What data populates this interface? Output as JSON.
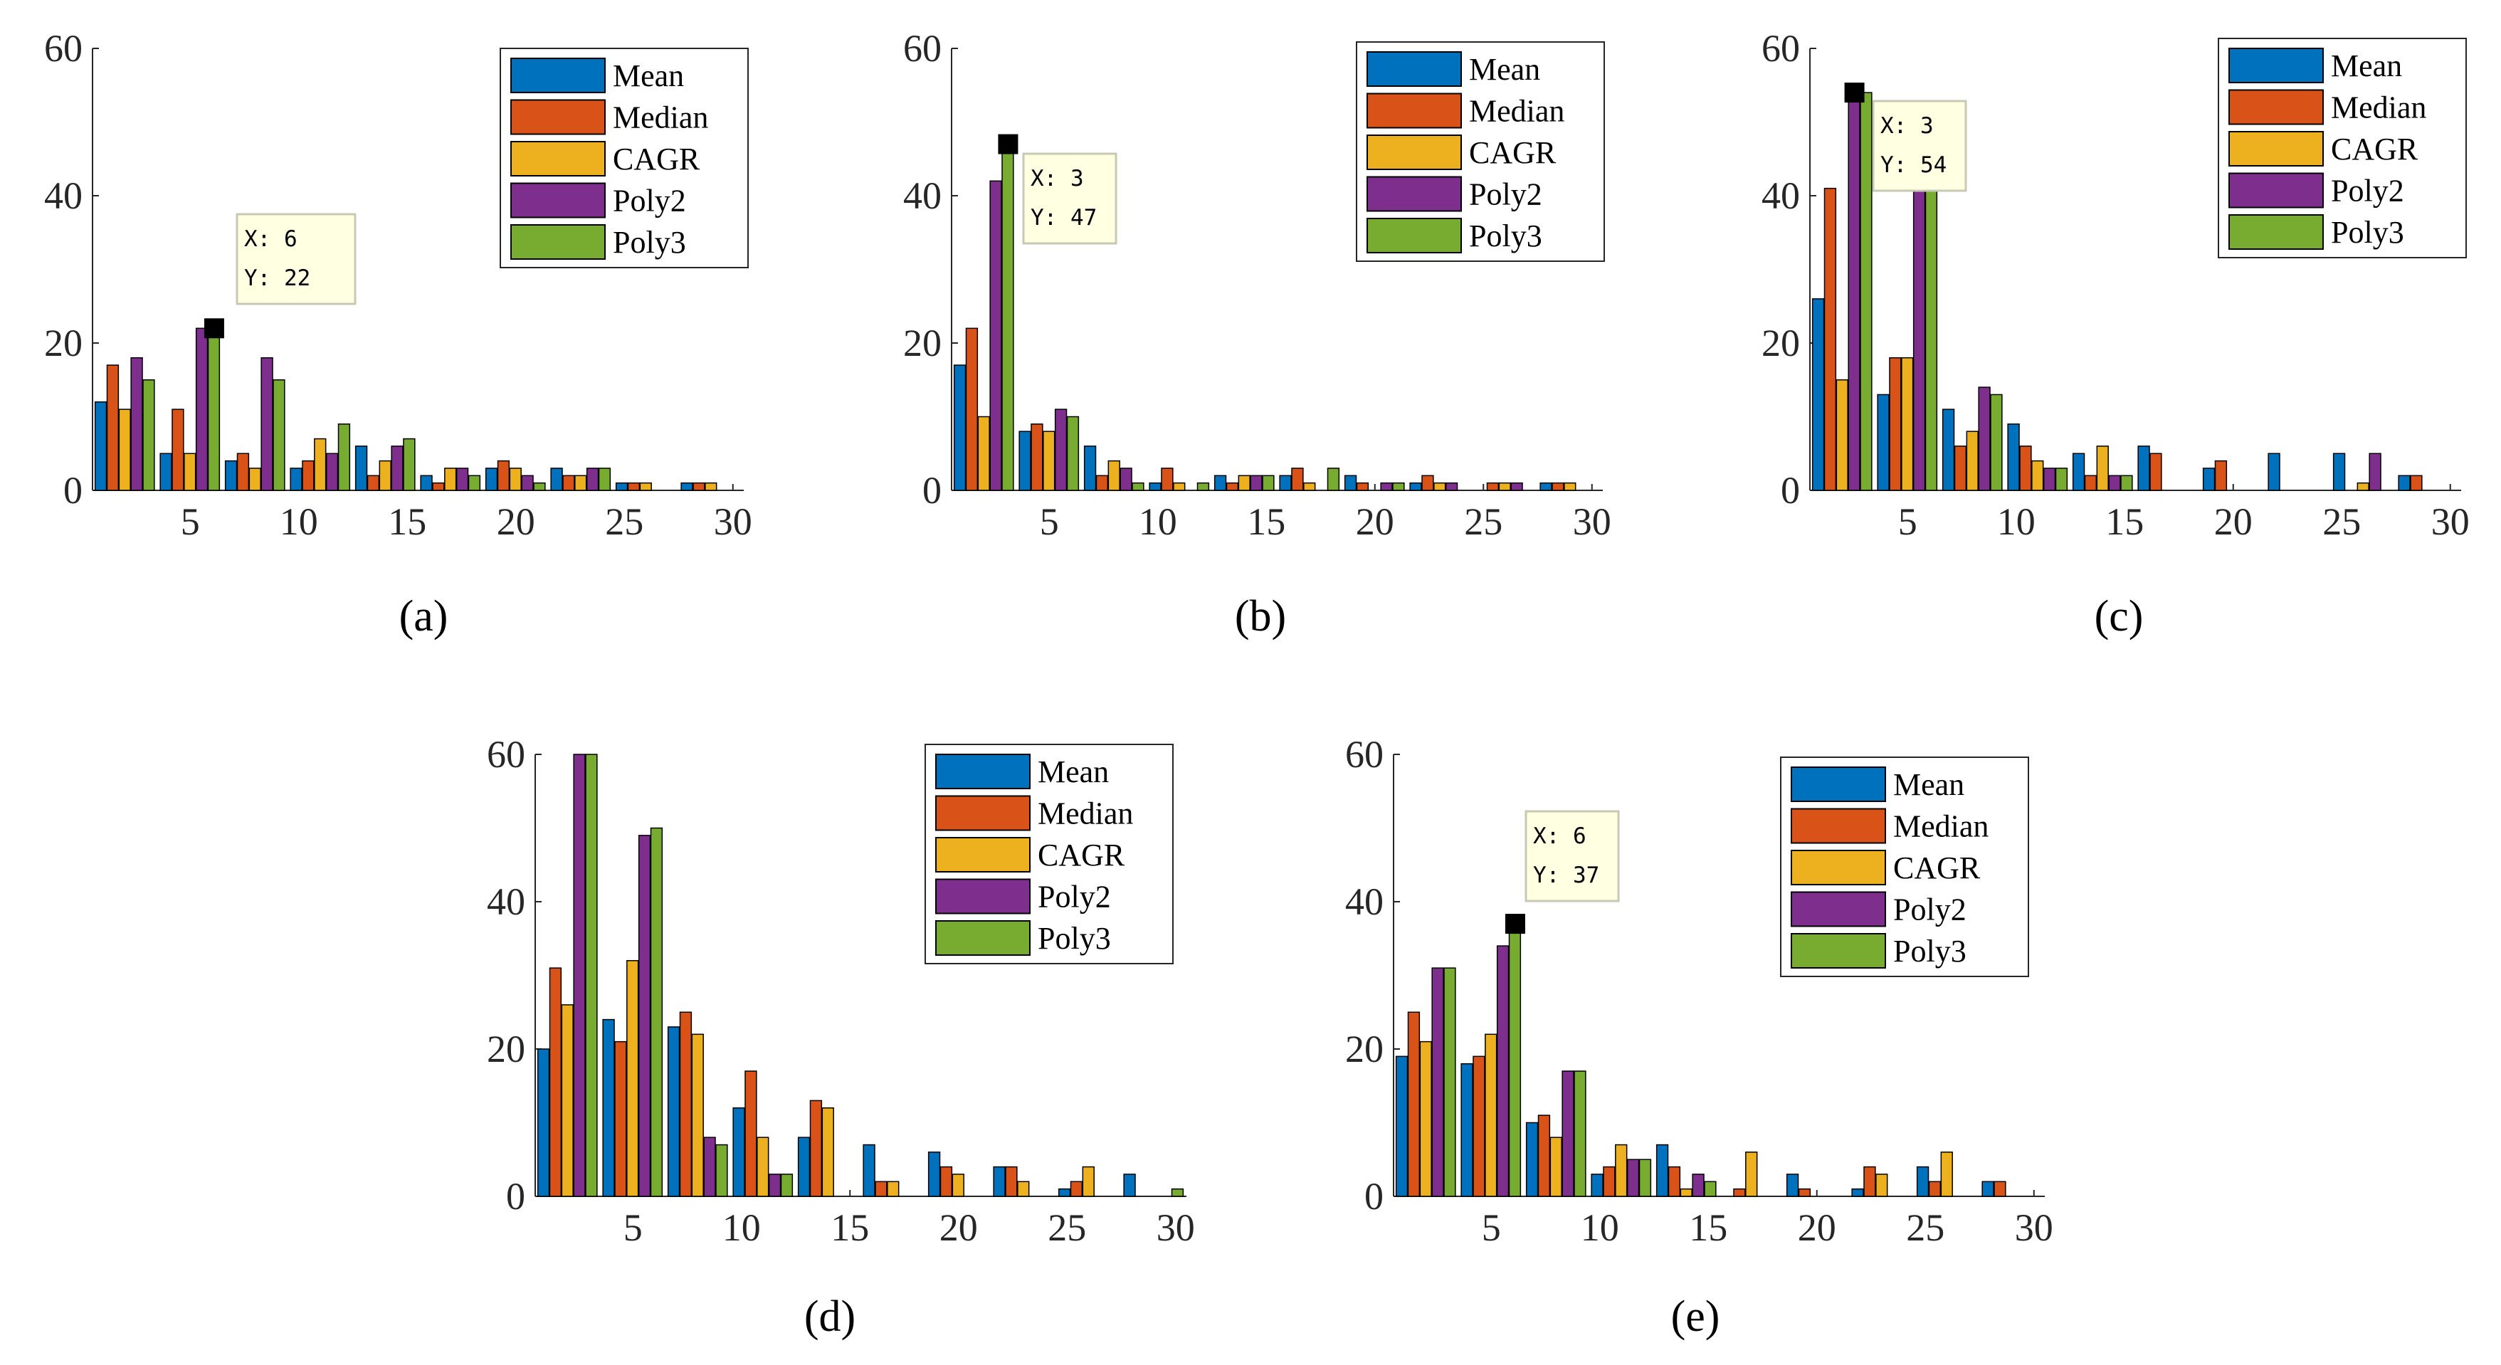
{
  "figure": {
    "series_names": [
      "Mean",
      "Median",
      "CAGR",
      "Poly2",
      "Poly3"
    ],
    "series_colors": [
      "#0072BD",
      "#D95319",
      "#EDB120",
      "#7E2F8E",
      "#77AC30"
    ]
  },
  "chart_data": [
    {
      "type": "bar",
      "panel_label": "(a)",
      "panel_letter": "a",
      "categories": [
        2,
        5,
        8,
        11,
        14,
        17,
        20,
        23,
        26,
        29
      ],
      "series": [
        {
          "name": "Mean",
          "values": [
            12,
            5,
            4,
            3,
            6,
            2,
            3,
            3,
            1,
            1
          ]
        },
        {
          "name": "Median",
          "values": [
            17,
            11,
            5,
            4,
            2,
            1,
            4,
            2,
            1,
            1
          ]
        },
        {
          "name": "CAGR",
          "values": [
            11,
            5,
            3,
            7,
            4,
            3,
            3,
            2,
            1,
            1
          ]
        },
        {
          "name": "Poly2",
          "values": [
            18,
            22,
            18,
            5,
            6,
            3,
            2,
            3,
            0,
            0
          ]
        },
        {
          "name": "Poly3",
          "values": [
            15,
            22,
            15,
            9,
            7,
            2,
            1,
            3,
            0,
            0
          ]
        }
      ],
      "xticks": [
        5,
        10,
        15,
        20,
        25,
        30
      ],
      "yticks": [
        0,
        20,
        40,
        60
      ],
      "xlim": [
        0.5,
        30.5
      ],
      "ylim": [
        0,
        60
      ],
      "legend_position": "top-right",
      "datatip": {
        "x_label": "X: 6",
        "y_label": "Y: 22",
        "x": 6,
        "y": 22,
        "series": "Poly3"
      }
    },
    {
      "type": "bar",
      "panel_label": "(b)",
      "panel_letter": "b",
      "categories": [
        2,
        5,
        8,
        11,
        14,
        17,
        20,
        23,
        26,
        29
      ],
      "series": [
        {
          "name": "Mean",
          "values": [
            17,
            8,
            6,
            1,
            2,
            2,
            2,
            1,
            0,
            1
          ]
        },
        {
          "name": "Median",
          "values": [
            22,
            9,
            2,
            3,
            1,
            3,
            1,
            2,
            1,
            1
          ]
        },
        {
          "name": "CAGR",
          "values": [
            10,
            8,
            4,
            1,
            2,
            1,
            0,
            1,
            1,
            1
          ]
        },
        {
          "name": "Poly2",
          "values": [
            42,
            11,
            3,
            0,
            2,
            0,
            1,
            1,
            1,
            0
          ]
        },
        {
          "name": "Poly3",
          "values": [
            47,
            10,
            1,
            1,
            2,
            3,
            1,
            0,
            0,
            0
          ]
        }
      ],
      "xticks": [
        5,
        10,
        15,
        20,
        25,
        30
      ],
      "yticks": [
        0,
        20,
        40,
        60
      ],
      "xlim": [
        0.5,
        30.5
      ],
      "ylim": [
        0,
        60
      ],
      "legend_position": "top-right",
      "datatip": {
        "x_label": "X: 3",
        "y_label": "Y: 47",
        "x": 3,
        "y": 47,
        "series": "Poly3"
      }
    },
    {
      "type": "bar",
      "panel_label": "(c)",
      "panel_letter": "c",
      "categories": [
        2,
        5,
        8,
        11,
        14,
        17,
        20,
        23,
        26,
        29
      ],
      "series": [
        {
          "name": "Mean",
          "values": [
            26,
            13,
            11,
            9,
            5,
            6,
            3,
            5,
            5,
            2
          ]
        },
        {
          "name": "Median",
          "values": [
            41,
            18,
            6,
            6,
            2,
            5,
            4,
            0,
            0,
            2
          ]
        },
        {
          "name": "CAGR",
          "values": [
            15,
            18,
            8,
            4,
            6,
            0,
            0,
            0,
            1,
            0
          ]
        },
        {
          "name": "Poly2",
          "values": [
            54,
            45,
            14,
            3,
            2,
            0,
            0,
            0,
            5,
            0
          ]
        },
        {
          "name": "Poly3",
          "values": [
            54,
            44,
            13,
            3,
            2,
            0,
            0,
            0,
            0,
            0
          ]
        }
      ],
      "xticks": [
        5,
        10,
        15,
        20,
        25,
        30
      ],
      "yticks": [
        0,
        20,
        40,
        60
      ],
      "xlim": [
        0.5,
        30.5
      ],
      "ylim": [
        0,
        60
      ],
      "legend_position": "top-right",
      "datatip": {
        "x_label": "X: 3",
        "y_label": "Y: 54",
        "x": 3,
        "y": 54,
        "series": "Poly2"
      }
    },
    {
      "type": "bar",
      "panel_label": "(d)",
      "panel_letter": "d",
      "categories": [
        2,
        5,
        8,
        11,
        14,
        17,
        20,
        23,
        26,
        29
      ],
      "series": [
        {
          "name": "Mean",
          "values": [
            20,
            24,
            23,
            12,
            8,
            7,
            6,
            4,
            1,
            3
          ]
        },
        {
          "name": "Median",
          "values": [
            31,
            21,
            25,
            17,
            13,
            2,
            4,
            4,
            2,
            0
          ]
        },
        {
          "name": "CAGR",
          "values": [
            26,
            32,
            22,
            8,
            12,
            2,
            3,
            2,
            4,
            0
          ]
        },
        {
          "name": "Poly2",
          "values": [
            60,
            49,
            8,
            3,
            0,
            0,
            0,
            0,
            0,
            0
          ]
        },
        {
          "name": "Poly3",
          "values": [
            60,
            50,
            7,
            3,
            0,
            0,
            0,
            0,
            0,
            1
          ]
        }
      ],
      "xticks": [
        5,
        10,
        15,
        20,
        25,
        30
      ],
      "yticks": [
        0,
        20,
        40,
        60
      ],
      "xlim": [
        0.5,
        30.5
      ],
      "ylim": [
        0,
        60
      ],
      "legend_position": "top-right"
    },
    {
      "type": "bar",
      "panel_label": "(e)",
      "panel_letter": "e",
      "categories": [
        2,
        5,
        8,
        11,
        14,
        17,
        20,
        23,
        26,
        29
      ],
      "series": [
        {
          "name": "Mean",
          "values": [
            19,
            18,
            10,
            3,
            7,
            0,
            3,
            1,
            4,
            2
          ]
        },
        {
          "name": "Median",
          "values": [
            25,
            19,
            11,
            4,
            4,
            1,
            1,
            4,
            2,
            2
          ]
        },
        {
          "name": "CAGR",
          "values": [
            21,
            22,
            8,
            7,
            1,
            6,
            0,
            3,
            6,
            0
          ]
        },
        {
          "name": "Poly2",
          "values": [
            31,
            34,
            17,
            5,
            3,
            0,
            0,
            0,
            0,
            0
          ]
        },
        {
          "name": "Poly3",
          "values": [
            31,
            37,
            17,
            5,
            2,
            0,
            0,
            0,
            0,
            0
          ]
        }
      ],
      "xticks": [
        5,
        10,
        15,
        20,
        25,
        30
      ],
      "yticks": [
        0,
        20,
        40,
        60
      ],
      "xlim": [
        0.5,
        30.5
      ],
      "ylim": [
        0,
        60
      ],
      "legend_position": "top-right",
      "datatip": {
        "x_label": "X: 6",
        "y_label": "Y: 37",
        "x": 6,
        "y": 37,
        "series": "Poly3"
      }
    }
  ]
}
